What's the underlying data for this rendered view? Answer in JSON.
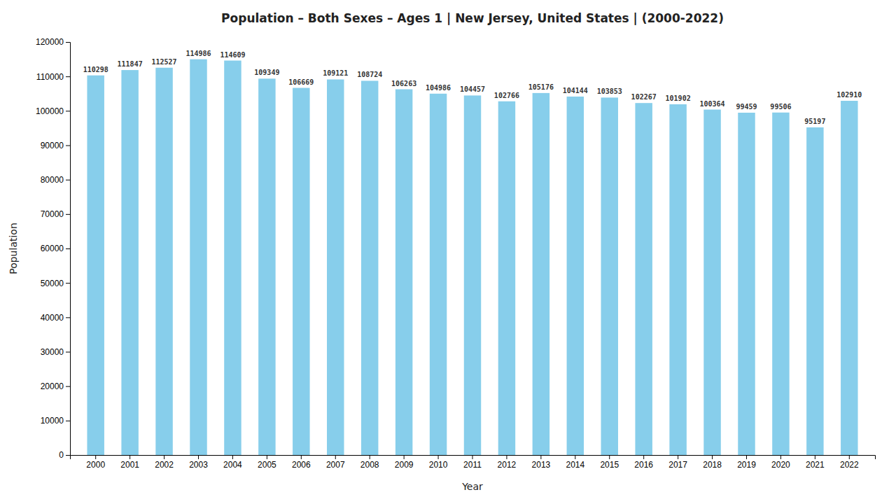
{
  "chart_data": {
    "type": "bar",
    "title": "Population – Both Sexes – Ages 1 | New Jersey, United States |  (2000-2022)",
    "xlabel": "Year",
    "ylabel": "Population",
    "categories": [
      "2000",
      "2001",
      "2002",
      "2003",
      "2004",
      "2005",
      "2006",
      "2007",
      "2008",
      "2009",
      "2010",
      "2011",
      "2012",
      "2013",
      "2014",
      "2015",
      "2016",
      "2017",
      "2018",
      "2019",
      "2020",
      "2021",
      "2022"
    ],
    "values": [
      110298,
      111847,
      112527,
      114986,
      114609,
      109349,
      106669,
      109121,
      108724,
      106263,
      104986,
      104457,
      102766,
      105176,
      104144,
      103853,
      102267,
      101902,
      100364,
      99459,
      99506,
      95197,
      102910
    ],
    "color": "#87CEEB",
    "ylim": [
      0,
      120000
    ],
    "yticks": [
      0,
      10000,
      20000,
      30000,
      40000,
      50000,
      60000,
      70000,
      80000,
      90000,
      100000,
      110000,
      120000
    ],
    "grid": false,
    "data_labels": true
  }
}
